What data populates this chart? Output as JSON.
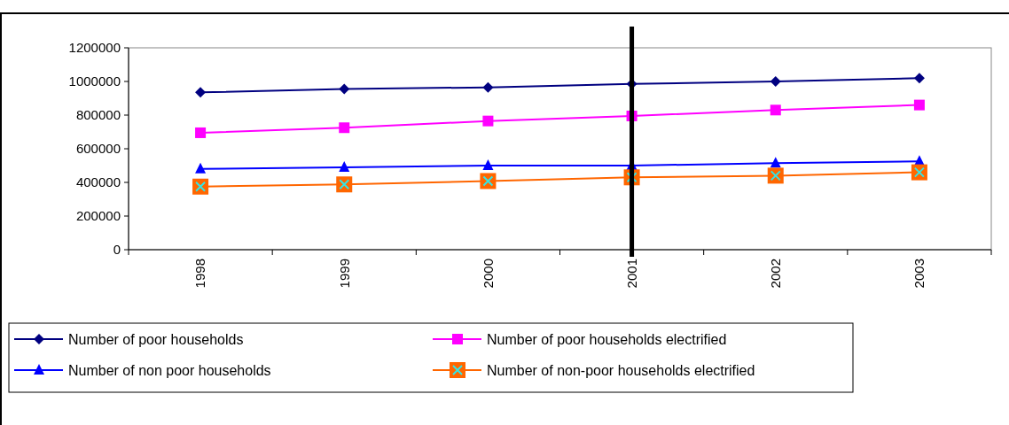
{
  "chart_data": {
    "type": "line",
    "categories": [
      "1998",
      "1999",
      "2000",
      "2001",
      "2002",
      "2003"
    ],
    "series": [
      {
        "name": "Number of poor households",
        "color": "#000080",
        "marker": "diamond",
        "values": [
          935000,
          955000,
          965000,
          985000,
          1000000,
          1020000
        ]
      },
      {
        "name": "Number of poor households electrified",
        "color": "#ff00ff",
        "marker": "square",
        "values": [
          695000,
          725000,
          765000,
          795000,
          830000,
          860000
        ]
      },
      {
        "name": "Number of non poor households",
        "color": "#0000ff",
        "marker": "triangle",
        "values": [
          480000,
          490000,
          500000,
          500000,
          515000,
          525000
        ]
      },
      {
        "name": "Number of non-poor households electrified",
        "color": "#ff6600",
        "marker": "square",
        "values": [
          375000,
          388000,
          408000,
          430000,
          440000,
          460000
        ]
      }
    ],
    "ylim": [
      0,
      1200000
    ],
    "yticks": [
      0,
      200000,
      400000,
      600000,
      800000,
      1000000,
      1200000
    ],
    "ref_lines": [
      {
        "axis": "x",
        "value": "2001",
        "color": "#000000"
      }
    ],
    "grid": false,
    "legend": "bottom"
  }
}
